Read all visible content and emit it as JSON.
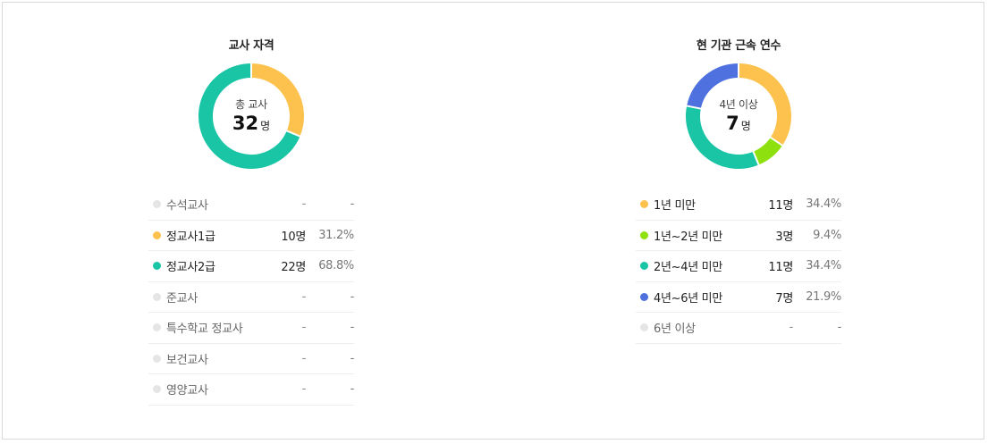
{
  "chart_data": [
    {
      "type": "pie",
      "title": "교사 자격",
      "center_label": "총 교사",
      "center_value": "32",
      "center_unit": "명",
      "slices": [
        {
          "label": "수석교사",
          "count": "-",
          "percent": "-",
          "value": 0,
          "color": "#e5e5e5"
        },
        {
          "label": "정교사1급",
          "count": "10명",
          "percent": "31.2%",
          "value": 10,
          "color": "#fdc24e"
        },
        {
          "label": "정교사2급",
          "count": "22명",
          "percent": "68.8%",
          "value": 22,
          "color": "#19c5a5"
        },
        {
          "label": "준교사",
          "count": "-",
          "percent": "-",
          "value": 0,
          "color": "#e5e5e5"
        },
        {
          "label": "특수학교 정교사",
          "count": "-",
          "percent": "-",
          "value": 0,
          "color": "#e5e5e5"
        },
        {
          "label": "보건교사",
          "count": "-",
          "percent": "-",
          "value": 0,
          "color": "#e5e5e5"
        },
        {
          "label": "영양교사",
          "count": "-",
          "percent": "-",
          "value": 0,
          "color": "#e5e5e5"
        }
      ]
    },
    {
      "type": "pie",
      "title": "현 기관 근속 연수",
      "center_label": "4년 이상",
      "center_value": "7",
      "center_unit": "명",
      "slices": [
        {
          "label": "1년 미만",
          "count": "11명",
          "percent": "34.4%",
          "value": 11,
          "color": "#fdc24e"
        },
        {
          "label": "1년~2년 미만",
          "count": "3명",
          "percent": "9.4%",
          "value": 3,
          "color": "#8fe00f"
        },
        {
          "label": "2년~4년 미만",
          "count": "11명",
          "percent": "34.4%",
          "value": 11,
          "color": "#19c5a5"
        },
        {
          "label": "4년~6년 미만",
          "count": "7명",
          "percent": "21.9%",
          "value": 7,
          "color": "#4f71e0"
        },
        {
          "label": "6년 이상",
          "count": "-",
          "percent": "-",
          "value": 0,
          "color": "#e5e5e5"
        }
      ]
    }
  ]
}
